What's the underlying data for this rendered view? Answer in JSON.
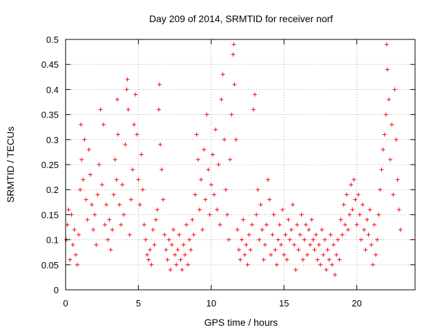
{
  "chart_data": {
    "type": "scatter",
    "title": "Day 209 of 2014, SRMTID for receiver norf",
    "xlabel": "GPS time / hours",
    "ylabel": "SRMTID / TECUs",
    "xlim": [
      0,
      24
    ],
    "ylim": [
      0,
      0.5
    ],
    "grid": true,
    "x_ticks": [
      0,
      5,
      10,
      15,
      20
    ],
    "x_tick_labels": [
      "0",
      "5",
      "10",
      "15",
      "20"
    ],
    "y_ticks": [
      0,
      0.05,
      0.1,
      0.15,
      0.2,
      0.25,
      0.3,
      0.35,
      0.4,
      0.45,
      0.5
    ],
    "y_tick_labels": [
      "0",
      "0.05",
      "0.1",
      "0.15",
      "0.2",
      "0.25",
      "0.3",
      "0.35",
      "0.4",
      "0.45",
      "0.5"
    ],
    "marker": "plus",
    "color": "#ff0000",
    "series": [
      {
        "name": "SRMTID",
        "points": [
          [
            0.05,
            0.1
          ],
          [
            0.12,
            0.13
          ],
          [
            0.2,
            0.16
          ],
          [
            0.3,
            0.06
          ],
          [
            0.4,
            0.15
          ],
          [
            0.5,
            0.09
          ],
          [
            0.6,
            0.12
          ],
          [
            0.7,
            0.07
          ],
          [
            0.8,
            0.05
          ],
          [
            0.9,
            0.11
          ],
          [
            1.0,
            0.2
          ],
          [
            1.05,
            0.33
          ],
          [
            1.1,
            0.26
          ],
          [
            1.2,
            0.22
          ],
          [
            1.3,
            0.3
          ],
          [
            1.4,
            0.18
          ],
          [
            1.5,
            0.14
          ],
          [
            1.6,
            0.28
          ],
          [
            1.7,
            0.23
          ],
          [
            1.8,
            0.17
          ],
          [
            1.9,
            0.12
          ],
          [
            2.0,
            0.15
          ],
          [
            2.1,
            0.09
          ],
          [
            2.2,
            0.19
          ],
          [
            2.3,
            0.25
          ],
          [
            2.4,
            0.36
          ],
          [
            2.5,
            0.21
          ],
          [
            2.6,
            0.33
          ],
          [
            2.7,
            0.13
          ],
          [
            2.8,
            0.17
          ],
          [
            2.9,
            0.1
          ],
          [
            3.0,
            0.14
          ],
          [
            3.1,
            0.08
          ],
          [
            3.2,
            0.12
          ],
          [
            3.3,
            0.19
          ],
          [
            3.4,
            0.26
          ],
          [
            3.5,
            0.22
          ],
          [
            3.55,
            0.38
          ],
          [
            3.6,
            0.31
          ],
          [
            3.7,
            0.17
          ],
          [
            3.8,
            0.13
          ],
          [
            3.9,
            0.21
          ],
          [
            4.0,
            0.15
          ],
          [
            4.1,
            0.29
          ],
          [
            4.2,
            0.4
          ],
          [
            4.25,
            0.42
          ],
          [
            4.3,
            0.36
          ],
          [
            4.4,
            0.11
          ],
          [
            4.5,
            0.18
          ],
          [
            4.6,
            0.24
          ],
          [
            4.7,
            0.33
          ],
          [
            4.8,
            0.39
          ],
          [
            4.9,
            0.31
          ],
          [
            5.0,
            0.22
          ],
          [
            5.1,
            0.17
          ],
          [
            5.2,
            0.27
          ],
          [
            5.3,
            0.2
          ],
          [
            5.4,
            0.13
          ],
          [
            5.5,
            0.1
          ],
          [
            5.6,
            0.07
          ],
          [
            5.7,
            0.06
          ],
          [
            5.8,
            0.08
          ],
          [
            5.9,
            0.05
          ],
          [
            6.0,
            0.12
          ],
          [
            6.1,
            0.09
          ],
          [
            6.2,
            0.14
          ],
          [
            6.3,
            0.16
          ],
          [
            6.4,
            0.36
          ],
          [
            6.45,
            0.41
          ],
          [
            6.5,
            0.29
          ],
          [
            6.6,
            0.24
          ],
          [
            6.7,
            0.18
          ],
          [
            6.8,
            0.11
          ],
          [
            6.9,
            0.08
          ],
          [
            7.0,
            0.06
          ],
          [
            7.1,
            0.1
          ],
          [
            7.2,
            0.04
          ],
          [
            7.3,
            0.09
          ],
          [
            7.4,
            0.12
          ],
          [
            7.5,
            0.07
          ],
          [
            7.6,
            0.05
          ],
          [
            7.7,
            0.08
          ],
          [
            7.8,
            0.11
          ],
          [
            7.9,
            0.06
          ],
          [
            8.0,
            0.04
          ],
          [
            8.1,
            0.09
          ],
          [
            8.2,
            0.07
          ],
          [
            8.3,
            0.13
          ],
          [
            8.4,
            0.05
          ],
          [
            8.5,
            0.1
          ],
          [
            8.6,
            0.08
          ],
          [
            8.7,
            0.14
          ],
          [
            8.8,
            0.11
          ],
          [
            8.9,
            0.19
          ],
          [
            9.0,
            0.31
          ],
          [
            9.1,
            0.26
          ],
          [
            9.2,
            0.16
          ],
          [
            9.3,
            0.22
          ],
          [
            9.4,
            0.12
          ],
          [
            9.5,
            0.28
          ],
          [
            9.6,
            0.18
          ],
          [
            9.7,
            0.35
          ],
          [
            9.8,
            0.24
          ],
          [
            9.9,
            0.15
          ],
          [
            10.0,
            0.21
          ],
          [
            10.1,
            0.27
          ],
          [
            10.2,
            0.19
          ],
          [
            10.3,
            0.32
          ],
          [
            10.4,
            0.16
          ],
          [
            10.5,
            0.25
          ],
          [
            10.6,
            0.13
          ],
          [
            10.7,
            0.38
          ],
          [
            10.8,
            0.43
          ],
          [
            10.9,
            0.3
          ],
          [
            11.0,
            0.2
          ],
          [
            11.1,
            0.15
          ],
          [
            11.2,
            0.1
          ],
          [
            11.3,
            0.26
          ],
          [
            11.4,
            0.35
          ],
          [
            11.5,
            0.47
          ],
          [
            11.55,
            0.49
          ],
          [
            11.6,
            0.41
          ],
          [
            11.7,
            0.3
          ],
          [
            11.8,
            0.12
          ],
          [
            11.9,
            0.08
          ],
          [
            12.0,
            0.06
          ],
          [
            12.1,
            0.1
          ],
          [
            12.2,
            0.14
          ],
          [
            12.3,
            0.07
          ],
          [
            12.4,
            0.09
          ],
          [
            12.5,
            0.05
          ],
          [
            12.6,
            0.11
          ],
          [
            12.7,
            0.08
          ],
          [
            12.8,
            0.13
          ],
          [
            12.9,
            0.36
          ],
          [
            13.0,
            0.39
          ],
          [
            13.1,
            0.15
          ],
          [
            13.2,
            0.2
          ],
          [
            13.3,
            0.1
          ],
          [
            13.4,
            0.17
          ],
          [
            13.5,
            0.12
          ],
          [
            13.6,
            0.06
          ],
          [
            13.7,
            0.09
          ],
          [
            13.8,
            0.13
          ],
          [
            13.9,
            0.22
          ],
          [
            14.0,
            0.18
          ],
          [
            14.1,
            0.07
          ],
          [
            14.2,
            0.11
          ],
          [
            14.3,
            0.15
          ],
          [
            14.4,
            0.08
          ],
          [
            14.5,
            0.05
          ],
          [
            14.6,
            0.1
          ],
          [
            14.7,
            0.13
          ],
          [
            14.8,
            0.09
          ],
          [
            14.9,
            0.16
          ],
          [
            15.0,
            0.07
          ],
          [
            15.1,
            0.11
          ],
          [
            15.2,
            0.06
          ],
          [
            15.3,
            0.14
          ],
          [
            15.4,
            0.1
          ],
          [
            15.5,
            0.12
          ],
          [
            15.6,
            0.17
          ],
          [
            15.7,
            0.09
          ],
          [
            15.8,
            0.04
          ],
          [
            15.9,
            0.13
          ],
          [
            16.0,
            0.08
          ],
          [
            16.1,
            0.11
          ],
          [
            16.2,
            0.15
          ],
          [
            16.3,
            0.06
          ],
          [
            16.4,
            0.1
          ],
          [
            16.5,
            0.13
          ],
          [
            16.6,
            0.07
          ],
          [
            16.7,
            0.12
          ],
          [
            16.8,
            0.09
          ],
          [
            16.9,
            0.14
          ],
          [
            17.0,
            0.1
          ],
          [
            17.1,
            0.08
          ],
          [
            17.2,
            0.11
          ],
          [
            17.3,
            0.06
          ],
          [
            17.4,
            0.09
          ],
          [
            17.5,
            0.05
          ],
          [
            17.6,
            0.12
          ],
          [
            17.7,
            0.07
          ],
          [
            17.8,
            0.1
          ],
          [
            17.9,
            0.04
          ],
          [
            18.0,
            0.08
          ],
          [
            18.1,
            0.06
          ],
          [
            18.2,
            0.11
          ],
          [
            18.3,
            0.05
          ],
          [
            18.4,
            0.09
          ],
          [
            18.5,
            0.03
          ],
          [
            18.6,
            0.07
          ],
          [
            18.7,
            0.1
          ],
          [
            18.8,
            0.06
          ],
          [
            18.9,
            0.14
          ],
          [
            19.0,
            0.11
          ],
          [
            19.1,
            0.17
          ],
          [
            19.2,
            0.13
          ],
          [
            19.3,
            0.19
          ],
          [
            19.4,
            0.12
          ],
          [
            19.5,
            0.15
          ],
          [
            19.6,
            0.21
          ],
          [
            19.7,
            0.16
          ],
          [
            19.8,
            0.22
          ],
          [
            19.9,
            0.18
          ],
          [
            20.0,
            0.13
          ],
          [
            20.1,
            0.19
          ],
          [
            20.2,
            0.15
          ],
          [
            20.3,
            0.1
          ],
          [
            20.4,
            0.17
          ],
          [
            20.5,
            0.12
          ],
          [
            20.6,
            0.08
          ],
          [
            20.7,
            0.14
          ],
          [
            20.8,
            0.11
          ],
          [
            20.9,
            0.16
          ],
          [
            21.0,
            0.09
          ],
          [
            21.1,
            0.05
          ],
          [
            21.2,
            0.13
          ],
          [
            21.3,
            0.07
          ],
          [
            21.4,
            0.1
          ],
          [
            21.5,
            0.15
          ],
          [
            21.6,
            0.2
          ],
          [
            21.7,
            0.24
          ],
          [
            21.8,
            0.28
          ],
          [
            21.9,
            0.31
          ],
          [
            22.0,
            0.35
          ],
          [
            22.05,
            0.49
          ],
          [
            22.1,
            0.44
          ],
          [
            22.2,
            0.38
          ],
          [
            22.3,
            0.26
          ],
          [
            22.4,
            0.33
          ],
          [
            22.5,
            0.19
          ],
          [
            22.6,
            0.4
          ],
          [
            22.7,
            0.3
          ],
          [
            22.8,
            0.22
          ],
          [
            22.9,
            0.16
          ],
          [
            23.0,
            0.12
          ]
        ]
      }
    ]
  }
}
